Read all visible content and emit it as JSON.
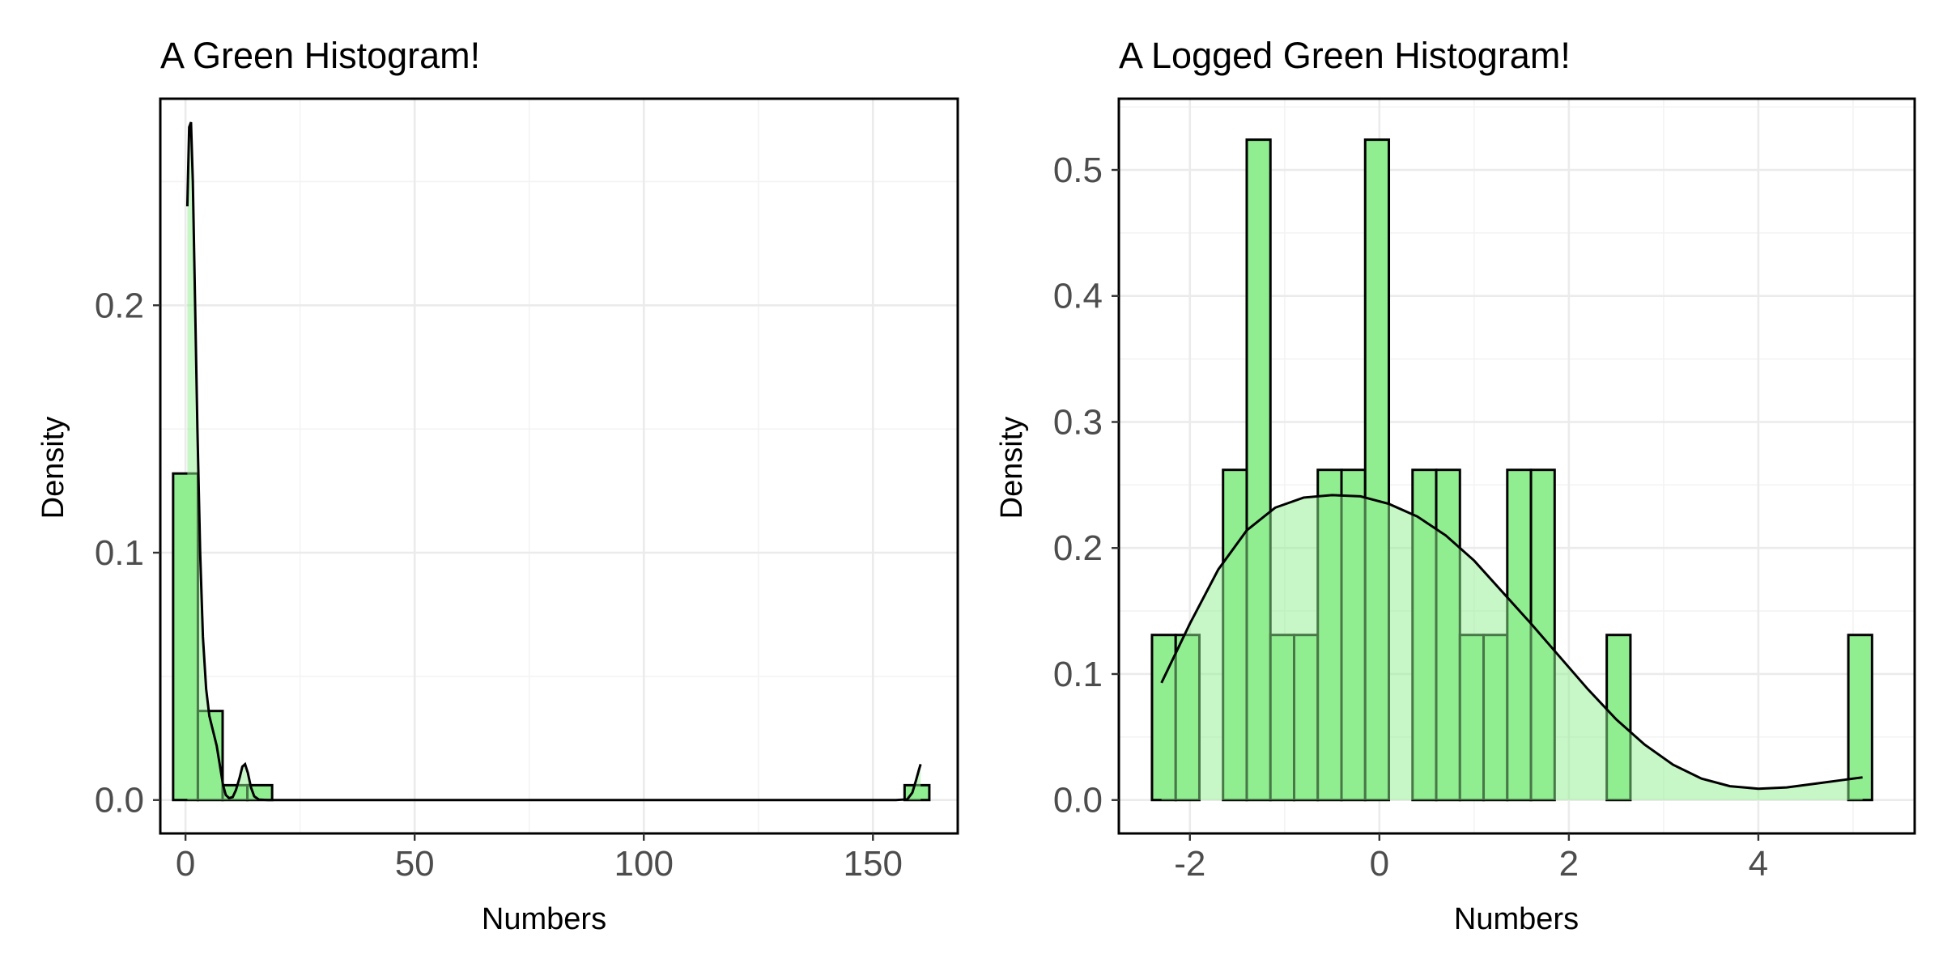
{
  "colors": {
    "bar_fill": "#90EE90",
    "density_fill": "#90EE90",
    "density_fill_opacity": 0.5,
    "bar_stroke": "#000000",
    "tick_text": "#4d4d4d"
  },
  "chart_data": [
    {
      "type": "histogram",
      "title": "A Green Histogram!",
      "xlabel": "Numbers",
      "ylabel": "Density",
      "xlim": [
        -5.5,
        168.5
      ],
      "ylim": [
        -0.0135,
        0.2835
      ],
      "xticks": [
        0,
        50,
        100,
        150
      ],
      "xtick_labels": [
        "0",
        "50",
        "100",
        "150"
      ],
      "yticks": [
        0.0,
        0.1,
        0.2
      ],
      "ytick_labels": [
        "0.0",
        "0.1",
        "0.2"
      ],
      "grid": true,
      "bins": [
        {
          "x0": -2.7,
          "x1": 2.7,
          "density": 0.132
        },
        {
          "x0": 2.7,
          "x1": 8.1,
          "density": 0.036
        },
        {
          "x0": 8.1,
          "x1": 13.5,
          "density": 0.006
        },
        {
          "x0": 13.5,
          "x1": 18.9,
          "density": 0.006
        },
        {
          "x0": 156.9,
          "x1": 162.3,
          "density": 0.006
        }
      ],
      "density_curve": [
        [
          0.4,
          0.24
        ],
        [
          0.8,
          0.272
        ],
        [
          1.2,
          0.274
        ],
        [
          1.6,
          0.25
        ],
        [
          2.0,
          0.21
        ],
        [
          2.6,
          0.15
        ],
        [
          3.2,
          0.1
        ],
        [
          3.8,
          0.066
        ],
        [
          4.5,
          0.045
        ],
        [
          5.2,
          0.034
        ],
        [
          6.0,
          0.028
        ],
        [
          6.8,
          0.022
        ],
        [
          7.5,
          0.014
        ],
        [
          8.2,
          0.006
        ],
        [
          8.8,
          0.002
        ],
        [
          9.5,
          0.0008
        ],
        [
          10.3,
          0.0012
        ],
        [
          11.0,
          0.004
        ],
        [
          11.8,
          0.009
        ],
        [
          12.4,
          0.0135
        ],
        [
          13.0,
          0.0145
        ],
        [
          13.6,
          0.011
        ],
        [
          14.3,
          0.005
        ],
        [
          15.0,
          0.0015
        ],
        [
          16.0,
          0.0002
        ],
        [
          18.0,
          0.0
        ],
        [
          40.0,
          0.0
        ],
        [
          80.0,
          0.0
        ],
        [
          120.0,
          0.0
        ],
        [
          155.0,
          0.0
        ],
        [
          157.5,
          0.0003
        ],
        [
          158.6,
          0.003
        ],
        [
          159.4,
          0.008
        ],
        [
          160.0,
          0.012
        ],
        [
          160.4,
          0.0145
        ]
      ]
    },
    {
      "type": "histogram",
      "title": "A Logged Green Histogram!",
      "xlabel": "Numbers",
      "ylabel": "Density",
      "xlim": [
        -2.75,
        5.65
      ],
      "ylim": [
        -0.0265,
        0.5565
      ],
      "xticks": [
        -2,
        0,
        2,
        4
      ],
      "xtick_labels": [
        "-2",
        "0",
        "2",
        "4"
      ],
      "yticks": [
        0.0,
        0.1,
        0.2,
        0.3,
        0.4,
        0.5
      ],
      "ytick_labels": [
        "0.0",
        "0.1",
        "0.2",
        "0.3",
        "0.4",
        "0.5"
      ],
      "grid": true,
      "bins": [
        {
          "x0": -2.4,
          "x1": -2.15,
          "density": 0.131
        },
        {
          "x0": -2.15,
          "x1": -1.9,
          "density": 0.131
        },
        {
          "x0": -1.65,
          "x1": -1.4,
          "density": 0.262
        },
        {
          "x0": -1.4,
          "x1": -1.15,
          "density": 0.524
        },
        {
          "x0": -1.15,
          "x1": -0.9,
          "density": 0.131
        },
        {
          "x0": -0.9,
          "x1": -0.65,
          "density": 0.131
        },
        {
          "x0": -0.65,
          "x1": -0.4,
          "density": 0.262
        },
        {
          "x0": -0.4,
          "x1": -0.15,
          "density": 0.262
        },
        {
          "x0": -0.15,
          "x1": 0.1,
          "density": 0.524
        },
        {
          "x0": 0.35,
          "x1": 0.6,
          "density": 0.262
        },
        {
          "x0": 0.6,
          "x1": 0.85,
          "density": 0.262
        },
        {
          "x0": 0.85,
          "x1": 1.1,
          "density": 0.131
        },
        {
          "x0": 1.1,
          "x1": 1.35,
          "density": 0.131
        },
        {
          "x0": 1.35,
          "x1": 1.6,
          "density": 0.262
        },
        {
          "x0": 1.6,
          "x1": 1.85,
          "density": 0.262
        },
        {
          "x0": 2.4,
          "x1": 2.65,
          "density": 0.131
        },
        {
          "x0": 4.95,
          "x1": 5.2,
          "density": 0.131
        }
      ],
      "density_curve": [
        [
          -2.3,
          0.093
        ],
        [
          -2.0,
          0.14
        ],
        [
          -1.7,
          0.183
        ],
        [
          -1.4,
          0.214
        ],
        [
          -1.1,
          0.232
        ],
        [
          -0.8,
          0.24
        ],
        [
          -0.5,
          0.242
        ],
        [
          -0.2,
          0.241
        ],
        [
          0.1,
          0.235
        ],
        [
          0.4,
          0.225
        ],
        [
          0.7,
          0.21
        ],
        [
          1.0,
          0.19
        ],
        [
          1.3,
          0.165
        ],
        [
          1.6,
          0.14
        ],
        [
          1.9,
          0.114
        ],
        [
          2.2,
          0.088
        ],
        [
          2.5,
          0.064
        ],
        [
          2.8,
          0.044
        ],
        [
          3.1,
          0.028
        ],
        [
          3.4,
          0.017
        ],
        [
          3.7,
          0.011
        ],
        [
          4.0,
          0.009
        ],
        [
          4.3,
          0.01
        ],
        [
          4.6,
          0.013
        ],
        [
          4.9,
          0.016
        ],
        [
          5.1,
          0.018
        ]
      ]
    }
  ]
}
